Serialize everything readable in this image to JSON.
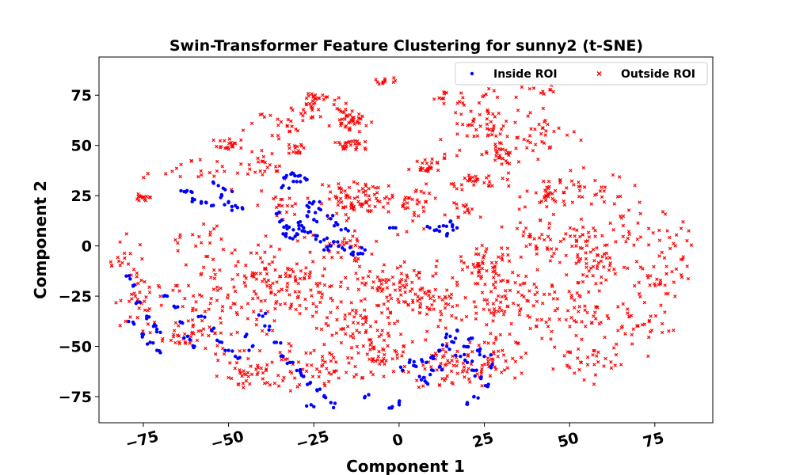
{
  "chart_data": {
    "type": "scatter",
    "title": "Swin-Transformer Feature Clustering for sunny2 (t-SNE)",
    "xlabel": "Component 1",
    "ylabel": "Component 2",
    "xlim": [
      -88,
      92
    ],
    "ylim": [
      -88,
      94
    ],
    "xticks": [
      -75,
      -50,
      -25,
      0,
      25,
      50,
      75
    ],
    "yticks": [
      -75,
      -50,
      -25,
      0,
      25,
      50,
      75
    ],
    "xtick_labels": [
      "−75",
      "−50",
      "−25",
      "0",
      "25",
      "50",
      "75"
    ],
    "ytick_labels": [
      "−75",
      "−50",
      "−25",
      "0",
      "25",
      "50",
      "75"
    ],
    "grid": false,
    "legend": "top-right",
    "series": [
      {
        "name": "Inside ROI",
        "color": "#0000ff",
        "marker": "circle",
        "points": [
          [
            -31,
            36
          ],
          [
            -33,
            35
          ],
          [
            -29,
            35
          ],
          [
            -27,
            33
          ],
          [
            -30,
            32
          ],
          [
            -34,
            30
          ],
          [
            -36,
            16
          ],
          [
            -35,
            12
          ],
          [
            -33,
            10
          ],
          [
            -31,
            8
          ],
          [
            -29,
            12
          ],
          [
            -27,
            15
          ],
          [
            -25,
            13
          ],
          [
            -34,
            6
          ],
          [
            -32,
            4
          ],
          [
            -30,
            6
          ],
          [
            -28,
            9
          ],
          [
            -26,
            7
          ],
          [
            -24,
            5
          ],
          [
            -22,
            3
          ],
          [
            -20,
            0
          ],
          [
            -22,
            -2
          ],
          [
            -18,
            2
          ],
          [
            -16,
            -2
          ],
          [
            -14,
            -4
          ],
          [
            -12,
            -4
          ],
          [
            -10,
            -2
          ],
          [
            -25,
            22
          ],
          [
            -27,
            20
          ],
          [
            -23,
            18
          ],
          [
            -21,
            15
          ],
          [
            -19,
            10
          ],
          [
            -17,
            8
          ],
          [
            -52,
            25
          ],
          [
            -50,
            22
          ],
          [
            -48,
            20
          ],
          [
            -46,
            19
          ],
          [
            -51,
            28
          ],
          [
            -53,
            30
          ],
          [
            -55,
            20
          ],
          [
            -61,
            27
          ],
          [
            -63,
            27
          ],
          [
            -60,
            23
          ],
          [
            -58,
            22
          ],
          [
            15,
            12
          ],
          [
            13,
            10
          ],
          [
            11,
            8
          ],
          [
            17,
            9
          ],
          [
            14,
            5
          ],
          [
            9,
            9
          ],
          [
            -1,
            9
          ],
          [
            -80,
            -15
          ],
          [
            -78,
            -20
          ],
          [
            -76,
            -28
          ],
          [
            -74,
            -35
          ],
          [
            -72,
            -40
          ],
          [
            -70,
            -43
          ],
          [
            -68,
            -25
          ],
          [
            -66,
            -30
          ],
          [
            -64,
            -38
          ],
          [
            -62,
            -45
          ],
          [
            -60,
            -50
          ],
          [
            -78,
            -38
          ],
          [
            -75,
            -44
          ],
          [
            -73,
            -48
          ],
          [
            -71,
            -52
          ],
          [
            -58,
            -35
          ],
          [
            -55,
            -42
          ],
          [
            -52,
            -48
          ],
          [
            -50,
            -52
          ],
          [
            -48,
            -55
          ],
          [
            -45,
            -45
          ],
          [
            -43,
            -50
          ],
          [
            -40,
            -35
          ],
          [
            -38,
            -40
          ],
          [
            -36,
            -48
          ],
          [
            -34,
            -55
          ],
          [
            -32,
            -58
          ],
          [
            -30,
            -62
          ],
          [
            -28,
            -65
          ],
          [
            -26,
            -68
          ],
          [
            -24,
            -72
          ],
          [
            -22,
            -75
          ],
          [
            -20,
            -78
          ],
          [
            -25,
            -80
          ],
          [
            -2,
            -80
          ],
          [
            0,
            -78
          ],
          [
            -10,
            -75
          ],
          [
            5,
            -60
          ],
          [
            8,
            -58
          ],
          [
            10,
            -55
          ],
          [
            12,
            -52
          ],
          [
            14,
            -50
          ],
          [
            16,
            -48
          ],
          [
            18,
            -55
          ],
          [
            20,
            -58
          ],
          [
            22,
            -62
          ],
          [
            24,
            -66
          ],
          [
            26,
            -70
          ],
          [
            22,
            -75
          ],
          [
            20,
            -78
          ],
          [
            6,
            -65
          ],
          [
            8,
            -68
          ],
          [
            10,
            -62
          ],
          [
            15,
            -45
          ],
          [
            17,
            -42
          ],
          [
            19,
            -50
          ],
          [
            21,
            -46
          ],
          [
            23,
            -52
          ],
          [
            25,
            -55
          ],
          [
            27,
            -60
          ],
          [
            12,
            -60
          ],
          [
            3,
            -58
          ],
          [
            1,
            -62
          ]
        ]
      },
      {
        "name": "Outside ROI",
        "color": "#ff0000",
        "marker": "x",
        "clusters": [
          [
            -2,
            -20,
            14,
            10,
            90
          ],
          [
            -28,
            -22,
            14,
            12,
            80
          ],
          [
            -52,
            -28,
            16,
            18,
            70
          ],
          [
            -75,
            -28,
            8,
            18,
            40
          ],
          [
            -60,
            5,
            8,
            5,
            15
          ],
          [
            -18,
            22,
            6,
            10,
            25
          ],
          [
            -10,
            22,
            8,
            9,
            60
          ],
          [
            8,
            40,
            4,
            3,
            25
          ],
          [
            5,
            20,
            5,
            10,
            30
          ],
          [
            22,
            32,
            8,
            4,
            30
          ],
          [
            20,
            18,
            6,
            4,
            15
          ],
          [
            -22,
            68,
            7,
            8,
            40
          ],
          [
            -13,
            62,
            4,
            6,
            30
          ],
          [
            -14,
            50,
            5,
            3,
            25
          ],
          [
            -30,
            48,
            3,
            3,
            15
          ],
          [
            -50,
            50,
            4,
            3,
            20
          ],
          [
            -75,
            24,
            2,
            2,
            15
          ],
          [
            -25,
            73,
            3,
            3,
            15
          ],
          [
            -4,
            82,
            4,
            2,
            12
          ],
          [
            25,
            60,
            12,
            15,
            60
          ],
          [
            28,
            45,
            6,
            6,
            25
          ],
          [
            42,
            55,
            10,
            10,
            35
          ],
          [
            45,
            25,
            8,
            8,
            40
          ],
          [
            60,
            30,
            8,
            8,
            25
          ],
          [
            70,
            10,
            8,
            10,
            25
          ],
          [
            80,
            0,
            6,
            15,
            25
          ],
          [
            55,
            0,
            8,
            12,
            40
          ],
          [
            40,
            2,
            10,
            10,
            40
          ],
          [
            25,
            -10,
            10,
            10,
            60
          ],
          [
            32,
            -28,
            10,
            10,
            60
          ],
          [
            50,
            -30,
            14,
            14,
            60
          ],
          [
            70,
            -40,
            10,
            10,
            30
          ],
          [
            55,
            -55,
            12,
            10,
            40
          ],
          [
            30,
            -55,
            8,
            12,
            40
          ],
          [
            15,
            -60,
            10,
            10,
            60
          ],
          [
            -5,
            -55,
            10,
            10,
            50
          ],
          [
            -25,
            -60,
            14,
            10,
            60
          ],
          [
            -45,
            -62,
            8,
            8,
            40
          ],
          [
            -60,
            -45,
            10,
            10,
            40
          ],
          [
            -80,
            -5,
            4,
            8,
            15
          ],
          [
            -62,
            38,
            10,
            6,
            20
          ],
          [
            -40,
            40,
            8,
            6,
            25
          ],
          [
            -35,
            20,
            6,
            6,
            20
          ],
          [
            10,
            -30,
            10,
            10,
            50
          ],
          [
            -12,
            -40,
            12,
            10,
            60
          ],
          [
            -40,
            -10,
            14,
            10,
            50
          ],
          [
            -15,
            0,
            10,
            8,
            30
          ],
          [
            20,
            75,
            10,
            4,
            20
          ],
          [
            40,
            78,
            6,
            3,
            10
          ],
          [
            -35,
            60,
            10,
            8,
            20
          ],
          [
            60,
            -10,
            10,
            10,
            35
          ],
          [
            75,
            -20,
            8,
            10,
            25
          ]
        ]
      }
    ]
  }
}
